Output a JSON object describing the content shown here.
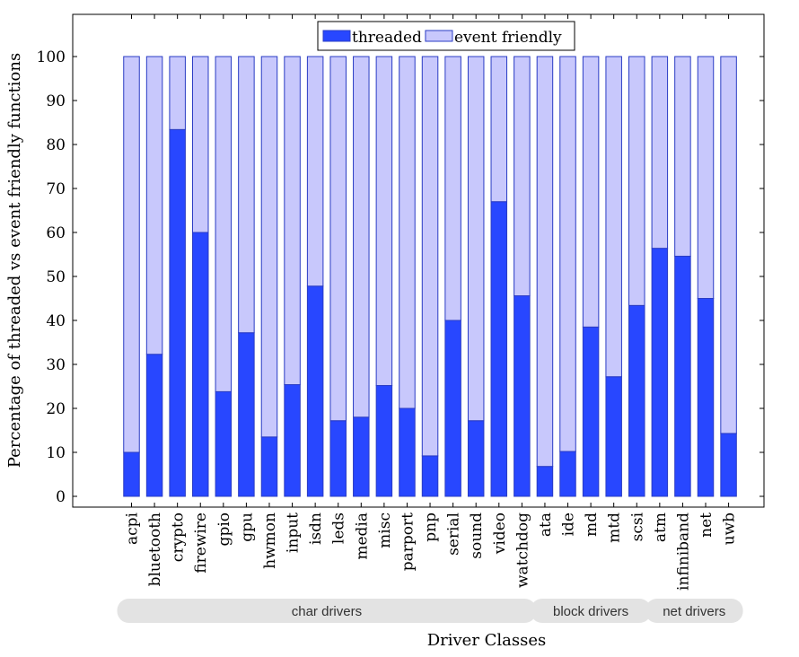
{
  "chart_data": {
    "type": "bar",
    "stacked": true,
    "title": "",
    "xlabel": "Driver Classes",
    "ylabel": "Percentage of threaded vs event friendly functions",
    "ylim": [
      0,
      100
    ],
    "yticks": [
      0,
      10,
      20,
      30,
      40,
      50,
      60,
      70,
      80,
      90,
      100
    ],
    "grid": false,
    "legend_position": "top-center",
    "categories": [
      "acpi",
      "bluetooth",
      "crypto",
      "firewire",
      "gpio",
      "gpu",
      "hwmon",
      "input",
      "isdn",
      "leds",
      "media",
      "misc",
      "parport",
      "pnp",
      "serial",
      "sound",
      "video",
      "watchdog",
      "ata",
      "ide",
      "md",
      "mtd",
      "scsi",
      "atm",
      "infiniband",
      "net",
      "uwb"
    ],
    "series": [
      {
        "name": "threaded",
        "color": "#2847ff",
        "values": [
          10,
          32.3,
          83.4,
          60,
          23.8,
          37.2,
          13.5,
          25.4,
          47.8,
          17.2,
          18,
          25.2,
          20,
          9.2,
          40,
          17.2,
          67,
          45.6,
          6.8,
          10.2,
          38.5,
          27.2,
          43.4,
          56.4,
          54.6,
          45,
          14.3
        ]
      },
      {
        "name": "event friendly",
        "color": "#c8c8fc",
        "values": [
          90,
          67.7,
          16.6,
          40,
          76.2,
          62.8,
          86.5,
          74.6,
          52.2,
          82.8,
          82,
          74.8,
          80,
          90.8,
          60,
          82.8,
          33,
          54.4,
          93.2,
          89.8,
          61.5,
          72.8,
          56.6,
          43.6,
          45.4,
          55,
          85.7
        ]
      }
    ],
    "groups": [
      {
        "label": "char drivers",
        "start": 0,
        "end": 17
      },
      {
        "label": "block drivers",
        "start": 18,
        "end": 22
      },
      {
        "label": "net drivers",
        "start": 23,
        "end": 26
      }
    ]
  }
}
